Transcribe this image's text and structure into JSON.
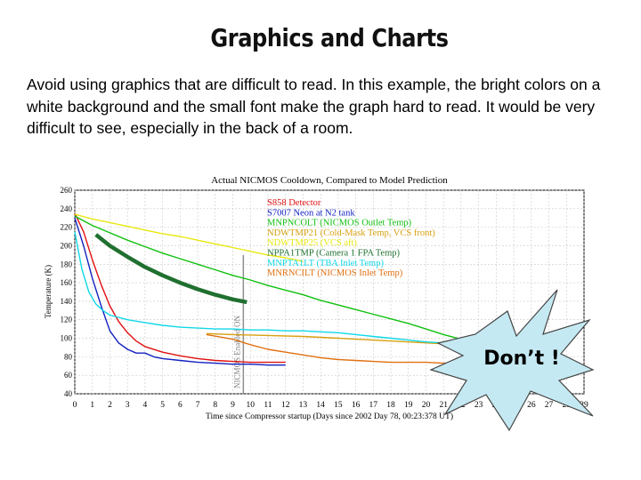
{
  "slide": {
    "title": "Graphics and Charts",
    "body": "Avoid using graphics that are difficult to read. In this example, the bright colors on a white background and the small font make the graph hard to read. It would be very difficult to see, especially in the back of a room.",
    "callout": "Don’t !",
    "callout_color": "#c5e9f2"
  },
  "chart_data": {
    "type": "line",
    "title": "Actual NICMOS Cooldown, Compared to Model Prediction",
    "xlabel": "Time since Compressor startup (Days since 2002 Day 78, 00:23:378 UT)",
    "ylabel": "Temperature (K)",
    "xlim": [
      0,
      29
    ],
    "ylim": [
      40,
      260
    ],
    "xticks": [
      0,
      1,
      2,
      3,
      4,
      5,
      6,
      7,
      8,
      9,
      10,
      11,
      12,
      13,
      14,
      15,
      16,
      17,
      18,
      19,
      20,
      21,
      22,
      23,
      24,
      25,
      26,
      27,
      28,
      29
    ],
    "yticks": [
      40,
      60,
      80,
      100,
      120,
      140,
      160,
      180,
      200,
      220,
      240,
      260
    ],
    "grid": true,
    "legend_position": "top-center",
    "vertical_annotation": {
      "x": 9.6,
      "label": "NICMOS Enabled ON"
    },
    "series": [
      {
        "name": "S858 Detector",
        "color": "#e01010",
        "points": [
          [
            0,
            235
          ],
          [
            0.5,
            215
          ],
          [
            1,
            185
          ],
          [
            1.5,
            158
          ],
          [
            2,
            135
          ],
          [
            2.5,
            118
          ],
          [
            3,
            106
          ],
          [
            3.5,
            97
          ],
          [
            4,
            91
          ],
          [
            5,
            85
          ],
          [
            6,
            81
          ],
          [
            7,
            78
          ],
          [
            8,
            76
          ],
          [
            9,
            75
          ],
          [
            10,
            74
          ],
          [
            11,
            74
          ],
          [
            12,
            74
          ]
        ]
      },
      {
        "name": "S7007 Neon at N2 tank",
        "color": "#1020c0",
        "points": [
          [
            0,
            230
          ],
          [
            0.5,
            200
          ],
          [
            1,
            165
          ],
          [
            1.5,
            135
          ],
          [
            2,
            108
          ],
          [
            2.5,
            95
          ],
          [
            3,
            88
          ],
          [
            3.5,
            84
          ],
          [
            4,
            84
          ],
          [
            4.5,
            80
          ],
          [
            5,
            78
          ],
          [
            6,
            76
          ],
          [
            7,
            74
          ],
          [
            8,
            73
          ],
          [
            9,
            72
          ],
          [
            10,
            72
          ],
          [
            11,
            71
          ],
          [
            12,
            71
          ]
        ]
      },
      {
        "name": "MNPNCOLT (NICMOS Outlet Temp)",
        "color": "#10c010",
        "points": [
          [
            0,
            232
          ],
          [
            1,
            222
          ],
          [
            2,
            214
          ],
          [
            3,
            206
          ],
          [
            4,
            199
          ],
          [
            5,
            192
          ],
          [
            6,
            186
          ],
          [
            7,
            180
          ],
          [
            8,
            174
          ],
          [
            9,
            168
          ],
          [
            10,
            163
          ],
          [
            11,
            157
          ],
          [
            12,
            152
          ],
          [
            13,
            147
          ],
          [
            14,
            141
          ],
          [
            15,
            136
          ],
          [
            16,
            131
          ],
          [
            17,
            126
          ],
          [
            18,
            121
          ],
          [
            19,
            116
          ],
          [
            20,
            110
          ],
          [
            21,
            104
          ],
          [
            22,
            99
          ],
          [
            23,
            95
          ]
        ]
      },
      {
        "name": "NDWTMP21 (Cold-Mask Temp, VCS front)",
        "color": "#d8a010",
        "points": [
          [
            7.5,
            105
          ],
          [
            9,
            104
          ],
          [
            11,
            103
          ],
          [
            13,
            102
          ],
          [
            15,
            100
          ],
          [
            17,
            98
          ],
          [
            19,
            96
          ],
          [
            21,
            94
          ],
          [
            23,
            92
          ]
        ]
      },
      {
        "name": "NDWTMP25 (VCS aft)",
        "color": "#e8e810",
        "points": [
          [
            0,
            234
          ],
          [
            1,
            229
          ],
          [
            2,
            225
          ],
          [
            3,
            221
          ],
          [
            4,
            217
          ],
          [
            5,
            213
          ],
          [
            6,
            210
          ],
          [
            7,
            206
          ],
          [
            8,
            202
          ],
          [
            9,
            198
          ],
          [
            10,
            194
          ],
          [
            11,
            190
          ],
          [
            12,
            187
          ],
          [
            13,
            183
          ]
        ]
      },
      {
        "name": "NPPA1TMP (Camera 1 FPA Temp)",
        "color": "#207030",
        "points": [
          [
            1.2,
            212
          ],
          [
            2,
            200
          ],
          [
            3,
            188
          ],
          [
            4,
            177
          ],
          [
            5,
            168
          ],
          [
            6,
            160
          ],
          [
            7,
            153
          ],
          [
            8,
            147
          ],
          [
            9,
            142
          ],
          [
            9.8,
            139
          ]
        ]
      },
      {
        "name": "MNPTA1LT (TBA Inlet Temp)",
        "color": "#10d8e8",
        "points": [
          [
            0,
            215
          ],
          [
            0.4,
            175
          ],
          [
            0.8,
            150
          ],
          [
            1.2,
            137
          ],
          [
            1.6,
            130
          ],
          [
            2,
            125
          ],
          [
            3,
            120
          ],
          [
            4,
            117
          ],
          [
            5,
            114
          ],
          [
            6,
            112
          ],
          [
            7,
            111
          ],
          [
            8,
            110
          ],
          [
            9,
            110
          ],
          [
            10,
            109
          ],
          [
            11,
            109
          ],
          [
            12,
            108
          ],
          [
            13,
            108
          ],
          [
            14,
            107
          ],
          [
            15,
            106
          ],
          [
            16,
            104
          ],
          [
            17,
            102
          ],
          [
            18,
            100
          ],
          [
            19,
            98
          ],
          [
            20,
            96
          ],
          [
            21,
            95
          ],
          [
            22,
            94
          ],
          [
            23,
            93
          ]
        ]
      },
      {
        "name": "MNRNCILT (NICMOS Inlet Temp)",
        "color": "#e07010",
        "points": [
          [
            7.5,
            104
          ],
          [
            9,
            99
          ],
          [
            10,
            93
          ],
          [
            11,
            88
          ],
          [
            12,
            85
          ],
          [
            13,
            82
          ],
          [
            14,
            79
          ],
          [
            15,
            77
          ],
          [
            16,
            76
          ],
          [
            17,
            75
          ],
          [
            18,
            74
          ],
          [
            19,
            74
          ],
          [
            20,
            74
          ],
          [
            21,
            73
          ],
          [
            22,
            73
          ],
          [
            23,
            73
          ]
        ]
      }
    ]
  }
}
